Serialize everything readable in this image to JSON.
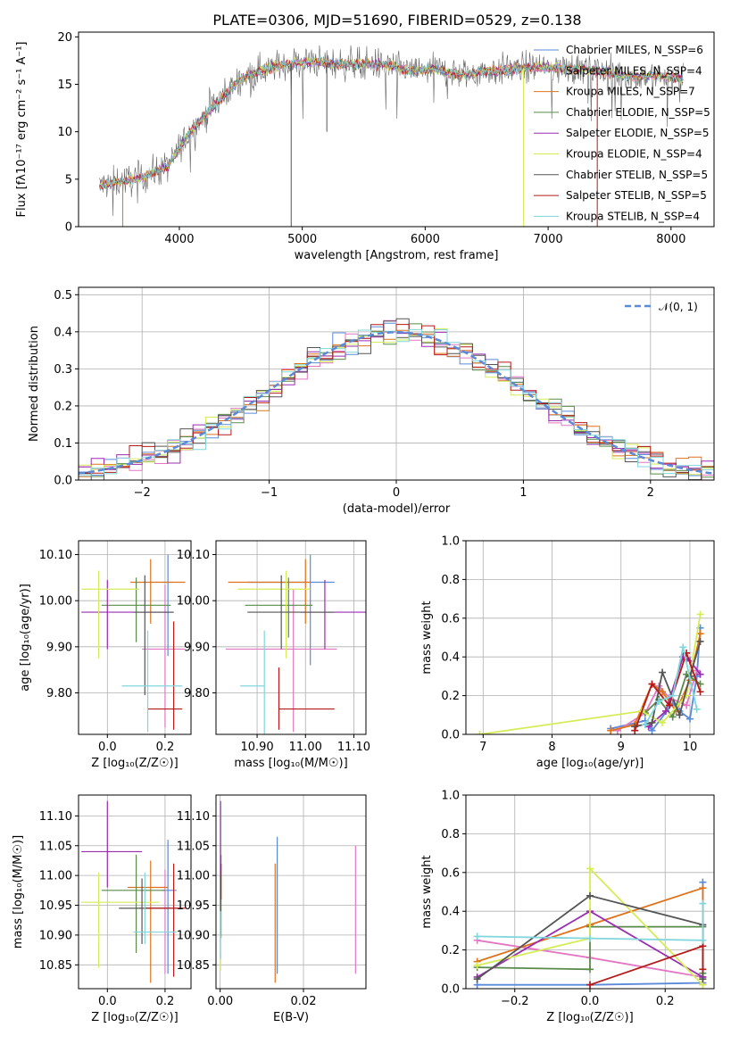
{
  "figure": {
    "title": "PLATE=0306, MJD=51690, FIBERID=0529, z=0.138"
  },
  "chart_data": [
    {
      "id": "spectrum",
      "type": "line",
      "xlabel": "wavelength [Angstrom, rest frame]",
      "ylabel": "Flux [fλ10⁻¹⁷ erg cm⁻² s⁻¹ A⁻¹]",
      "xlim": [
        3180,
        8350
      ],
      "ylim": [
        0,
        20.5
      ],
      "xticks": [
        4000,
        5000,
        6000,
        7000,
        8000
      ],
      "yticks": [
        0,
        5,
        10,
        15,
        20
      ],
      "legend_position": "right",
      "envelope": {
        "x": [
          3350,
          3500,
          3700,
          3900,
          4100,
          4300,
          4500,
          4700,
          4900,
          5100,
          5300,
          5500,
          5700,
          5900,
          6100,
          6300,
          6500,
          6700,
          6900,
          7100,
          7300,
          7500,
          7700,
          7900,
          8100
        ],
        "y": [
          4.3,
          4.7,
          5.2,
          6.3,
          10.2,
          13.0,
          15.6,
          16.6,
          17.2,
          17.4,
          17.1,
          17.2,
          17.0,
          16.4,
          16.6,
          16.0,
          16.4,
          16.6,
          16.8,
          16.7,
          16.6,
          16.2,
          15.8,
          15.9,
          15.5
        ]
      },
      "series": [
        {
          "name": "Chabrier MILES, N_SSP=6",
          "color": "#5b8ad8"
        },
        {
          "name": "Salpeter MILES, N_SSP=4",
          "color": "#e377c2"
        },
        {
          "name": "Kroupa MILES, N_SSP=7",
          "color": "#e0721b"
        },
        {
          "name": "Chabrier ELODIE, N_SSP=5",
          "color": "#5a8a4a"
        },
        {
          "name": "Salpeter ELODIE, N_SSP=5",
          "color": "#9a2db0"
        },
        {
          "name": "Kroupa ELODIE, N_SSP=4",
          "color": "#d6ec57"
        },
        {
          "name": "Chabrier STELIB, N_SSP=5",
          "color": "#555555"
        },
        {
          "name": "Salpeter STELIB, N_SSP=5",
          "color": "#b51a1a"
        },
        {
          "name": "Kroupa STELIB, N_SSP=4",
          "color": "#7fd6dc"
        }
      ]
    },
    {
      "id": "residuals",
      "type": "line",
      "xlabel": "(data-model)/error",
      "ylabel": "Normed distribution",
      "xlim": [
        -2.5,
        2.5
      ],
      "ylim": [
        0,
        0.52
      ],
      "xticks": [
        -2,
        -1,
        0,
        1,
        2
      ],
      "yticks": [
        0.0,
        0.1,
        0.2,
        0.3,
        0.4,
        0.5
      ],
      "legend": "𝒩(0, 1)",
      "legend_position": "top-right",
      "reference_curve": "normal(0,1)"
    },
    {
      "id": "age_vs_Z",
      "type": "scatter",
      "xlabel": "Z [log₁₀(Z/Z☉)]",
      "ylabel": "age  [log₁₀(age/yr)]",
      "xlim": [
        -0.1,
        0.29
      ],
      "ylim": [
        9.71,
        10.13
      ],
      "xticks": [
        0.0,
        0.2
      ],
      "yticks": [
        9.8,
        9.9,
        10.0,
        10.1
      ],
      "points": [
        {
          "x": 0.21,
          "y": 10.04,
          "xerr": [
            0.02,
            0.015
          ],
          "yerr": [
            0.16,
            0.06
          ],
          "color": "#5b8ad8"
        },
        {
          "x": 0.2,
          "y": 9.895,
          "xerr": [
            0.08,
            0.07
          ],
          "yerr": [
            0.17,
            0.14
          ],
          "color": "#e377c2"
        },
        {
          "x": 0.15,
          "y": 10.04,
          "xerr": [
            0.07,
            0.12
          ],
          "yerr": [
            0.09,
            0.05
          ],
          "color": "#e0721b"
        },
        {
          "x": 0.1,
          "y": 9.99,
          "xerr": [
            0.12,
            0.12
          ],
          "yerr": [
            0.08,
            0.06
          ],
          "color": "#5a8a4a"
        },
        {
          "x": 0.0,
          "y": 9.975,
          "xerr": [
            0.09,
            0.23
          ],
          "yerr": [
            0.08,
            0.07
          ],
          "color": "#9a2db0"
        },
        {
          "x": -0.03,
          "y": 10.025,
          "xerr": [
            0.06,
            0.14
          ],
          "yerr": [
            0.15,
            0.04
          ],
          "color": "#d6ec57"
        },
        {
          "x": 0.13,
          "y": 9.975,
          "xerr": [
            0.04,
            0.1
          ],
          "yerr": [
            0.18,
            0.08
          ],
          "color": "#555555"
        },
        {
          "x": 0.23,
          "y": 9.765,
          "xerr": [
            0.09,
            0.03
          ],
          "yerr": [
            0.045,
            0.19
          ],
          "color": "#b51a1a"
        },
        {
          "x": 0.14,
          "y": 9.815,
          "xerr": [
            0.09,
            0.12
          ],
          "yerr": [
            0.1,
            0.12
          ],
          "color": "#7fd6dc"
        }
      ]
    },
    {
      "id": "age_vs_mass",
      "type": "scatter",
      "xlabel": "mass [log₁₀(M/M☉)]",
      "ylabel": "",
      "xlim": [
        10.815,
        11.125
      ],
      "ylim": [
        9.71,
        10.13
      ],
      "xticks": [
        10.9,
        11.0,
        11.1
      ],
      "yticks": [
        9.8,
        9.9,
        10.0,
        10.1
      ],
      "points": [
        {
          "x": 11.01,
          "y": 10.04,
          "xerr": [
            0.13,
            0.05
          ],
          "yerr": [
            0.18,
            0.06
          ],
          "color": "#5b8ad8"
        },
        {
          "x": 10.975,
          "y": 9.895,
          "xerr": [
            0.14,
            0.09
          ],
          "yerr": [
            0.18,
            0.13
          ],
          "color": "#e377c2"
        },
        {
          "x": 11.0,
          "y": 10.04,
          "xerr": [
            0.16,
            0.01
          ],
          "yerr": [
            0.09,
            0.05
          ],
          "color": "#e0721b"
        },
        {
          "x": 10.965,
          "y": 9.99,
          "xerr": [
            0.09,
            0.05
          ],
          "yerr": [
            0.07,
            0.06
          ],
          "color": "#5a8a4a"
        },
        {
          "x": 11.04,
          "y": 9.975,
          "xerr": [
            0.05,
            0.09
          ],
          "yerr": [
            0.08,
            0.07
          ],
          "color": "#9a2db0"
        },
        {
          "x": 10.96,
          "y": 10.025,
          "xerr": [
            0.1,
            0.05
          ],
          "yerr": [
            0.15,
            0.04
          ],
          "color": "#d6ec57"
        },
        {
          "x": 10.95,
          "y": 9.975,
          "xerr": [
            0.07,
            0.11
          ],
          "yerr": [
            0.08,
            0.08
          ],
          "color": "#555555"
        },
        {
          "x": 10.945,
          "y": 9.765,
          "xerr": [
            0.0,
            0.115
          ],
          "yerr": [
            0.045,
            0.09
          ],
          "color": "#b51a1a"
        },
        {
          "x": 10.915,
          "y": 9.815,
          "xerr": [
            0.05,
            0.0
          ],
          "yerr": [
            0.12,
            0.12
          ],
          "color": "#7fd6dc"
        }
      ]
    },
    {
      "id": "mass_weight_vs_age",
      "type": "line",
      "xlabel": "age  [log₁₀(age/yr)]",
      "ylabel": "mass weight",
      "xlim": [
        6.75,
        10.35
      ],
      "ylim": [
        0,
        1.0
      ],
      "xticks": [
        7,
        8,
        9,
        10
      ],
      "yticks": [
        0.0,
        0.2,
        0.4,
        0.6,
        0.8,
        1.0
      ],
      "series": [
        {
          "color": "#5b8ad8",
          "x": [
            8.85,
            9.35,
            9.45,
            9.75,
            9.85,
            10.0,
            10.1,
            10.15
          ],
          "y": [
            0.03,
            0.07,
            0.02,
            0.16,
            0.12,
            0.08,
            0.3,
            0.55
          ]
        },
        {
          "color": "#e377c2",
          "x": [
            8.95,
            9.35,
            9.55,
            9.7,
            9.95,
            10.1
          ],
          "y": [
            0.02,
            0.11,
            0.25,
            0.19,
            0.15,
            0.33
          ]
        },
        {
          "color": "#e0721b",
          "x": [
            8.85,
            9.2,
            9.45,
            9.6,
            9.8,
            10.0,
            10.15
          ],
          "y": [
            0.02,
            0.05,
            0.26,
            0.22,
            0.12,
            0.28,
            0.52
          ]
        },
        {
          "color": "#5a8a4a",
          "x": [
            9.35,
            9.55,
            9.75,
            9.95,
            10.15
          ],
          "y": [
            0.11,
            0.18,
            0.09,
            0.31,
            0.26
          ]
        },
        {
          "color": "#9a2db0",
          "x": [
            9.4,
            9.65,
            9.9,
            10.0,
            10.15
          ],
          "y": [
            0.04,
            0.12,
            0.4,
            0.38,
            0.31
          ]
        },
        {
          "color": "#d6ec57",
          "x": [
            6.95,
            9.3,
            9.6,
            9.95,
            10.15
          ],
          "y": [
            0.0,
            0.12,
            0.06,
            0.2,
            0.62
          ]
        },
        {
          "color": "#555555",
          "x": [
            9.2,
            9.45,
            9.6,
            9.85,
            10.0,
            10.15
          ],
          "y": [
            0.04,
            0.06,
            0.32,
            0.1,
            0.3,
            0.48
          ]
        },
        {
          "color": "#b51a1a",
          "x": [
            9.2,
            9.45,
            9.7,
            9.95,
            10.15
          ],
          "y": [
            0.02,
            0.26,
            0.15,
            0.42,
            0.22
          ]
        },
        {
          "color": "#7fd6dc",
          "x": [
            9.35,
            9.55,
            9.75,
            9.9,
            10.1
          ],
          "y": [
            0.05,
            0.17,
            0.2,
            0.45,
            0.13
          ]
        }
      ]
    },
    {
      "id": "mass_vs_Z",
      "type": "scatter",
      "xlabel": "Z [log₁₀(Z/Z☉)]",
      "ylabel": "mass [log₁₀(M/M☉)]",
      "xlim": [
        -0.1,
        0.29
      ],
      "ylim": [
        10.81,
        11.135
      ],
      "xticks": [
        0.0,
        0.2
      ],
      "yticks": [
        10.85,
        10.9,
        10.95,
        11.0,
        11.05,
        11.1
      ],
      "points": [
        {
          "x": 0.21,
          "y": 10.975,
          "xerr": [
            0.02,
            0.03
          ],
          "yerr": [
            0.14,
            0.085
          ],
          "color": "#5b8ad8"
        },
        {
          "x": 0.2,
          "y": 10.945,
          "xerr": [
            0.09,
            0.06
          ],
          "yerr": [
            0.11,
            0.065
          ],
          "color": "#e377c2"
        },
        {
          "x": 0.15,
          "y": 10.98,
          "xerr": [
            0.08,
            0.06
          ],
          "yerr": [
            0.16,
            0.045
          ],
          "color": "#e0721b"
        },
        {
          "x": 0.1,
          "y": 10.975,
          "xerr": [
            0.12,
            0.1
          ],
          "yerr": [
            0.105,
            0.06
          ],
          "color": "#5a8a4a"
        },
        {
          "x": 0.0,
          "y": 11.04,
          "xerr": [
            0.09,
            0.12
          ],
          "yerr": [
            0.06,
            0.085
          ],
          "color": "#9a2db0"
        },
        {
          "x": -0.03,
          "y": 10.955,
          "xerr": [
            0.06,
            0.21
          ],
          "yerr": [
            0.11,
            0.05
          ],
          "color": "#d6ec57"
        },
        {
          "x": 0.12,
          "y": 10.945,
          "xerr": [
            0.08,
            0.1
          ],
          "yerr": [
            0.06,
            0.05
          ],
          "color": "#555555"
        },
        {
          "x": 0.23,
          "y": 10.945,
          "xerr": [
            0.1,
            0.04
          ],
          "yerr": [
            0.115,
            0.075
          ],
          "color": "#b51a1a"
        },
        {
          "x": 0.13,
          "y": 10.905,
          "xerr": [
            0.04,
            0.11
          ],
          "yerr": [
            0.02,
            0.1
          ],
          "color": "#7fd6dc"
        }
      ]
    },
    {
      "id": "mass_vs_ebv",
      "type": "scatter",
      "xlabel": "E(B-V)",
      "ylabel": "",
      "xlim": [
        -0.001,
        0.035
      ],
      "ylim": [
        10.81,
        11.135
      ],
      "xticks": [
        0.0,
        0.02
      ],
      "yticks": [
        10.85,
        10.9,
        10.95,
        11.0,
        11.05,
        11.1
      ],
      "points": [
        {
          "x": 0.0137,
          "y": 10.975,
          "yerr": [
            0.14,
            0.09
          ],
          "color": "#5b8ad8"
        },
        {
          "x": 0.0325,
          "y": 10.945,
          "yerr": [
            0.11,
            0.105
          ],
          "color": "#e377c2"
        },
        {
          "x": 0.0132,
          "y": 10.925,
          "yerr": [
            0.105,
            0.095
          ],
          "color": "#e0721b"
        },
        {
          "x": 0.0002,
          "y": 10.975,
          "yerr": [
            0.08,
            0.06
          ],
          "color": "#5a8a4a"
        },
        {
          "x": 0.0001,
          "y": 11.04,
          "yerr": [
            0.07,
            0.085
          ],
          "color": "#9a2db0"
        },
        {
          "x": 0.0001,
          "y": 10.86,
          "yerr": [
            0.02,
            0.01
          ],
          "color": "#d6ec57"
        },
        {
          "x": 0.0001,
          "y": 10.95,
          "yerr": [
            0.05,
            0.05
          ],
          "color": "#555555"
        },
        {
          "x": 0.0002,
          "y": 11.0,
          "yerr": [
            0.04,
            0.02
          ],
          "color": "#b51a1a"
        },
        {
          "x": 0.0001,
          "y": 10.9,
          "yerr": [
            0.04,
            0.04
          ],
          "color": "#7fd6dc"
        }
      ]
    },
    {
      "id": "mass_weight_vs_Z",
      "type": "line",
      "xlabel": "Z [log₁₀(Z/Z☉)]",
      "ylabel": "mass weight",
      "xlim": [
        -0.33,
        0.33
      ],
      "ylim": [
        0,
        1.0
      ],
      "xticks": [
        -0.2,
        0.0,
        0.2
      ],
      "yticks": [
        0.0,
        0.2,
        0.4,
        0.6,
        0.8,
        1.0
      ],
      "series": [
        {
          "color": "#5b8ad8",
          "x": [
            -0.3,
            0.0,
            0.3,
            0.3
          ],
          "y": [
            0.02,
            0.02,
            0.03,
            0.55
          ]
        },
        {
          "color": "#e377c2",
          "x": [
            -0.3,
            0.0,
            0.3
          ],
          "y": [
            0.25,
            0.16,
            0.06
          ]
        },
        {
          "color": "#e0721b",
          "x": [
            -0.3,
            0.0,
            0.3,
            0.3
          ],
          "y": [
            0.14,
            0.33,
            0.52,
            0.02
          ]
        },
        {
          "color": "#5a8a4a",
          "x": [
            -0.3,
            0.0,
            0.0,
            0.3,
            0.3
          ],
          "y": [
            0.11,
            0.1,
            0.32,
            0.32,
            0.08
          ]
        },
        {
          "color": "#9a2db0",
          "x": [
            -0.3,
            0.0,
            0.3
          ],
          "y": [
            0.06,
            0.4,
            0.06
          ]
        },
        {
          "color": "#d6ec57",
          "x": [
            -0.3,
            0.0,
            0.0,
            0.3
          ],
          "y": [
            0.12,
            0.26,
            0.62,
            0.02
          ]
        },
        {
          "color": "#555555",
          "x": [
            -0.3,
            0.0,
            0.3,
            0.3
          ],
          "y": [
            0.05,
            0.48,
            0.33,
            0.05
          ]
        },
        {
          "color": "#b51a1a",
          "x": [
            0.0,
            0.3,
            0.3
          ],
          "y": [
            0.02,
            0.22,
            0.1
          ]
        },
        {
          "color": "#7fd6dc",
          "x": [
            -0.3,
            0.0,
            0.3,
            0.3
          ],
          "y": [
            0.27,
            0.26,
            0.25,
            0.44
          ]
        }
      ]
    }
  ]
}
